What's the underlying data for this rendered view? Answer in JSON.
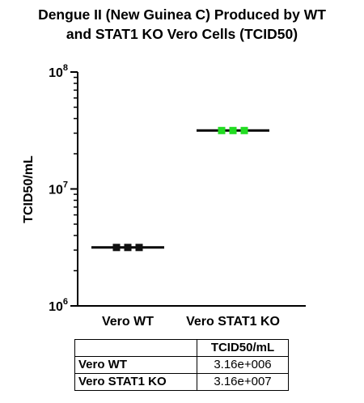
{
  "title_lines": [
    "Dengue II (New Guinea C) Produced by WT",
    "and STAT1 KO Vero Cells (TCID50)"
  ],
  "chart_data": {
    "type": "scatter",
    "scale": "log10",
    "ylabel": "TCID50/mL",
    "ylim": [
      1000000,
      100000000
    ],
    "yticks": [
      {
        "base": "10",
        "exp": "6",
        "value": 1000000
      },
      {
        "base": "10",
        "exp": "7",
        "value": 10000000
      },
      {
        "base": "10",
        "exp": "8",
        "value": 100000000
      }
    ],
    "categories": [
      "Vero WT",
      "Vero STAT1 KO"
    ],
    "series": [
      {
        "category": "Vero WT",
        "points": [
          3160000,
          3160000,
          3160000
        ],
        "mean": 3160000,
        "color": "#111111"
      },
      {
        "category": "Vero STAT1 KO",
        "points": [
          31600000,
          31600000,
          31600000
        ],
        "mean": 31600000,
        "color": "#22dd22"
      }
    ]
  },
  "table": {
    "corner": "",
    "col_header": "TCID50/mL",
    "rows": [
      {
        "label": "Vero WT",
        "value": "3.16e+006"
      },
      {
        "label": "Vero STAT1 KO",
        "value": "3.16e+007"
      }
    ]
  }
}
